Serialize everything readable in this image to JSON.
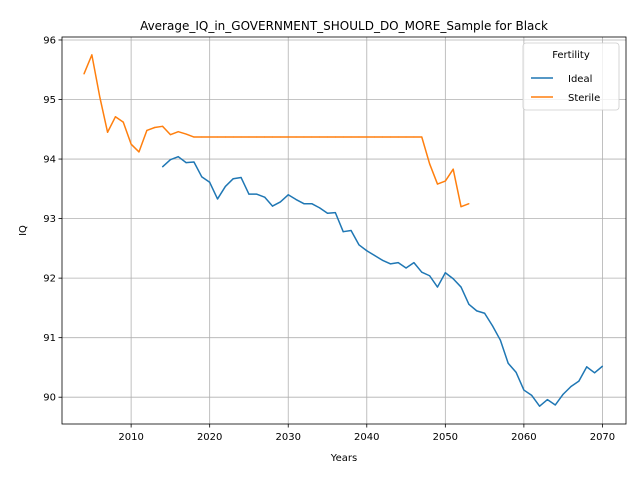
{
  "chart_data": {
    "type": "line",
    "title": "Average_IQ_in_GOVERNMENT_SHOULD_DO_MORE_Sample for Black",
    "xlabel": "Years",
    "ylabel": "IQ",
    "xlim": [
      2001.2,
      2073.0
    ],
    "ylim": [
      89.55,
      96.05
    ],
    "xticks": [
      2010,
      2020,
      2030,
      2040,
      2050,
      2060,
      2070
    ],
    "yticks": [
      90,
      91,
      92,
      93,
      94,
      95,
      96
    ],
    "grid": true,
    "legend": {
      "title": "Fertility",
      "placement": "upper right"
    },
    "series": [
      {
        "name": "Ideal",
        "color": "#1f77b4",
        "x": [
          2014,
          2015,
          2016,
          2017,
          2018,
          2019,
          2020,
          2021,
          2022,
          2023,
          2024,
          2025,
          2026,
          2027,
          2028,
          2029,
          2030,
          2031,
          2032,
          2033,
          2034,
          2035,
          2036,
          2037,
          2038,
          2039,
          2040,
          2041,
          2042,
          2043,
          2044,
          2045,
          2046,
          2047,
          2048,
          2049,
          2050,
          2051,
          2052,
          2053,
          2054,
          2055,
          2056,
          2057,
          2058,
          2059,
          2060,
          2061,
          2062,
          2063,
          2064,
          2065,
          2066,
          2067,
          2068,
          2069,
          2070
        ],
        "values": [
          93.87,
          93.99,
          94.04,
          93.94,
          93.95,
          93.7,
          93.61,
          93.33,
          93.54,
          93.67,
          93.69,
          93.41,
          93.41,
          93.36,
          93.21,
          93.28,
          93.4,
          93.32,
          93.25,
          93.25,
          93.18,
          93.09,
          93.1,
          92.78,
          92.8,
          92.56,
          92.46,
          92.38,
          92.3,
          92.24,
          92.26,
          92.17,
          92.26,
          92.1,
          92.04,
          91.85,
          92.09,
          91.99,
          91.85,
          91.56,
          91.45,
          91.41,
          91.2,
          90.96,
          90.57,
          90.42,
          90.12,
          90.03,
          89.85,
          89.96,
          89.87,
          90.05,
          90.18,
          90.27,
          90.51,
          90.41,
          90.52
        ]
      },
      {
        "name": "Sterile",
        "color": "#ff7f0e",
        "x": [
          2004,
          2005,
          2006,
          2007,
          2008,
          2009,
          2010,
          2011,
          2012,
          2013,
          2014,
          2015,
          2016,
          2017,
          2018,
          2019,
          2020,
          2021,
          2022,
          2023,
          2024,
          2025,
          2026,
          2027,
          2028,
          2029,
          2030,
          2031,
          2032,
          2033,
          2034,
          2035,
          2036,
          2037,
          2038,
          2039,
          2040,
          2041,
          2042,
          2043,
          2044,
          2045,
          2046,
          2047,
          2048,
          2049,
          2050,
          2051,
          2052,
          2053
        ],
        "values": [
          95.43,
          95.75,
          95.05,
          94.45,
          94.71,
          94.62,
          94.25,
          94.12,
          94.48,
          94.53,
          94.55,
          94.41,
          94.46,
          94.42,
          94.37,
          94.37,
          94.37,
          94.37,
          94.37,
          94.37,
          94.37,
          94.37,
          94.37,
          94.37,
          94.37,
          94.37,
          94.37,
          94.37,
          94.37,
          94.37,
          94.37,
          94.37,
          94.37,
          94.37,
          94.37,
          94.37,
          94.37,
          94.37,
          94.37,
          94.37,
          94.37,
          94.37,
          94.37,
          94.37,
          93.92,
          93.58,
          93.63,
          93.83,
          93.2,
          93.25
        ]
      }
    ]
  }
}
